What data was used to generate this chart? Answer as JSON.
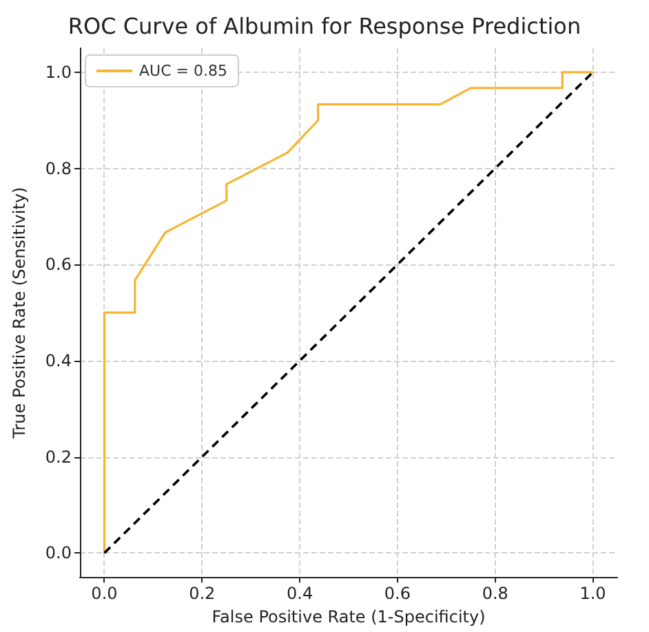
{
  "chart_data": {
    "type": "line",
    "title": "ROC Curve of Albumin for Response Prediction",
    "xlabel": "False Positive Rate (1-Specificity)",
    "ylabel": "True Positive Rate (Sensitivity)",
    "series": [
      {
        "name": "AUC = 0.85",
        "color": "#f5b52e",
        "line_style": "solid",
        "x": [
          0,
          0,
          0.0625,
          0.0625,
          0.125,
          0.25,
          0.25,
          0.375,
          0.4375,
          0.4375,
          0.6875,
          0.75,
          0.9375,
          0.9375,
          1
        ],
        "values": [
          0,
          0.5,
          0.5,
          0.567,
          0.667,
          0.733,
          0.767,
          0.833,
          0.9,
          0.933,
          0.933,
          0.967,
          0.967,
          1.0,
          1.0
        ]
      },
      {
        "color": "#000000",
        "line_style": "dashed",
        "x": [
          0,
          1
        ],
        "values": [
          0,
          1
        ]
      }
    ],
    "xlim": [
      -0.05,
      1.05
    ],
    "ylim": [
      -0.05,
      1.05
    ],
    "xticks": [
      {
        "value": 0,
        "label": "0.0"
      },
      0.2,
      0.4,
      0.6,
      0.8,
      {
        "value": 1,
        "label": "1.0"
      }
    ],
    "yticks": [
      {
        "value": 0,
        "label": "0.0"
      },
      0.2,
      0.4,
      0.6,
      0.8,
      {
        "value": 1,
        "label": "1.0"
      }
    ],
    "grid": true,
    "legend": "top left",
    "marker": "none"
  }
}
